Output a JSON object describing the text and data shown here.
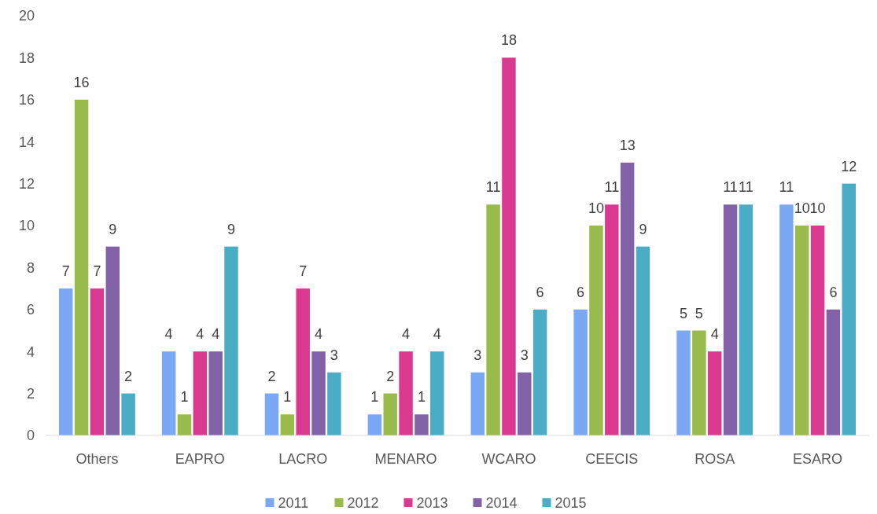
{
  "chart_data": {
    "type": "bar",
    "categories": [
      "Others",
      "EAPRO",
      "LACRO",
      "MENARO",
      "WCARO",
      "CEECIS",
      "ROSA",
      "ESARO"
    ],
    "series": [
      {
        "name": "2011",
        "color": "#7aa8f5",
        "values": [
          7,
          4,
          2,
          1,
          3,
          6,
          5,
          11
        ]
      },
      {
        "name": "2012",
        "color": "#98bb4c",
        "values": [
          16,
          1,
          1,
          2,
          11,
          10,
          5,
          10
        ]
      },
      {
        "name": "2013",
        "color": "#d9398f",
        "values": [
          7,
          4,
          7,
          4,
          18,
          11,
          4,
          10
        ]
      },
      {
        "name": "2014",
        "color": "#8262a6",
        "values": [
          9,
          4,
          4,
          1,
          3,
          13,
          11,
          6
        ]
      },
      {
        "name": "2015",
        "color": "#4aacc5",
        "values": [
          2,
          9,
          3,
          4,
          6,
          9,
          11,
          12
        ]
      }
    ],
    "ylim": [
      0,
      20
    ],
    "yticks": [
      0,
      2,
      4,
      6,
      8,
      10,
      12,
      14,
      16,
      18,
      20
    ],
    "data_labels": true,
    "legend": "bottom"
  }
}
